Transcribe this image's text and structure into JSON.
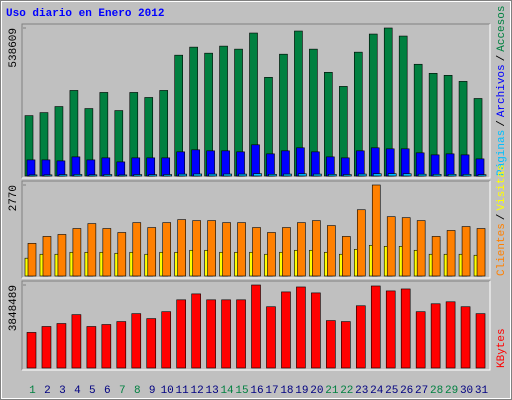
{
  "chart_data": [
    {
      "type": "bar",
      "title": "Uso diario en Enero 2012",
      "legend_separator": "/",
      "ylim": [
        0,
        538609
      ],
      "yticks": [
        538609
      ],
      "series": [
        {
          "name": "Accesos",
          "color": "#008040",
          "values": [
            219800,
            230800,
            252800,
            311400,
            245500,
            304100,
            238200,
            304100,
            285800,
            311400,
            439700,
            469000,
            447000,
            472700,
            461700,
            520300,
            359100,
            443300,
            527600,
            461700,
            377400,
            326100,
            450700,
            516600,
            538609,
            509300,
            406700,
            373700,
            366400,
            344400,
            282100
          ]
        },
        {
          "name": "Archivos",
          "color": "#0000ff",
          "values": [
            58600,
            58600,
            55000,
            69600,
            58600,
            66000,
            51300,
            66000,
            66000,
            66000,
            87900,
            95300,
            91600,
            91600,
            87900,
            113600,
            80600,
            91600,
            102600,
            87900,
            69600,
            66000,
            91600,
            102600,
            98900,
            98900,
            84300,
            76900,
            80600,
            76900,
            62300
          ]
        },
        {
          "name": "Páginas",
          "color": "#00c0ff",
          "values": [
            4000,
            4200,
            5100,
            5600,
            4300,
            5400,
            3900,
            5200,
            5000,
            5300,
            6900,
            7400,
            7100,
            7200,
            7000,
            8600,
            6200,
            7100,
            8100,
            7000,
            5900,
            5300,
            7100,
            8300,
            8500,
            8200,
            6600,
            6100,
            6000,
            5800,
            4900
          ]
        }
      ]
    },
    {
      "type": "bar",
      "legend_separator": "/",
      "ylim": [
        0,
        2770
      ],
      "yticks": [
        2770
      ],
      "series": [
        {
          "name": "Visitas",
          "color": "#ffff00",
          "values": [
            542,
            662,
            662,
            722,
            722,
            722,
            692,
            722,
            662,
            722,
            722,
            783,
            783,
            722,
            722,
            722,
            662,
            722,
            783,
            783,
            722,
            662,
            813,
            933,
            903,
            903,
            783,
            662,
            662,
            662,
            632
          ]
        },
        {
          "name": "Clientes",
          "color": "#ff8000",
          "values": [
            993,
            1204,
            1264,
            1445,
            1595,
            1445,
            1324,
            1625,
            1475,
            1625,
            1716,
            1686,
            1686,
            1625,
            1625,
            1475,
            1324,
            1475,
            1625,
            1686,
            1535,
            1204,
            2017,
            2770,
            1806,
            1776,
            1686,
            1204,
            1385,
            1505,
            1445
          ]
        }
      ]
    },
    {
      "type": "bar",
      "ylim": [
        0,
        3848489
      ],
      "yticks": [
        3848489
      ],
      "categories": [
        "1",
        "2",
        "3",
        "4",
        "5",
        "6",
        "7",
        "8",
        "9",
        "10",
        "11",
        "12",
        "13",
        "14",
        "15",
        "16",
        "17",
        "18",
        "19",
        "20",
        "21",
        "22",
        "23",
        "24",
        "25",
        "26",
        "27",
        "28",
        "29",
        "30",
        "31"
      ],
      "category_colors": [
        "#008040",
        "#000080",
        "#000080",
        "#000080",
        "#000080",
        "#000080",
        "#008040",
        "#008040",
        "#000080",
        "#000080",
        "#000080",
        "#000080",
        "#000080",
        "#008040",
        "#008040",
        "#000080",
        "#000080",
        "#000080",
        "#000080",
        "#000080",
        "#008040",
        "#008040",
        "#000080",
        "#000080",
        "#000080",
        "#000080",
        "#000080",
        "#008040",
        "#008040",
        "#000080",
        "#000080"
      ],
      "series": [
        {
          "name": "KBytes",
          "color": "#ff0000",
          "values": [
            1649000,
            1924000,
            2062000,
            2474000,
            1924000,
            2016000,
            2153000,
            2520000,
            2291000,
            2611000,
            3161000,
            3436000,
            3161000,
            3161000,
            3161000,
            3848489,
            2841000,
            3528000,
            3757000,
            3482000,
            2199000,
            2153000,
            2886000,
            3803000,
            3574000,
            3665000,
            2611000,
            2978000,
            3070000,
            2841000,
            2520000
          ]
        }
      ]
    }
  ]
}
